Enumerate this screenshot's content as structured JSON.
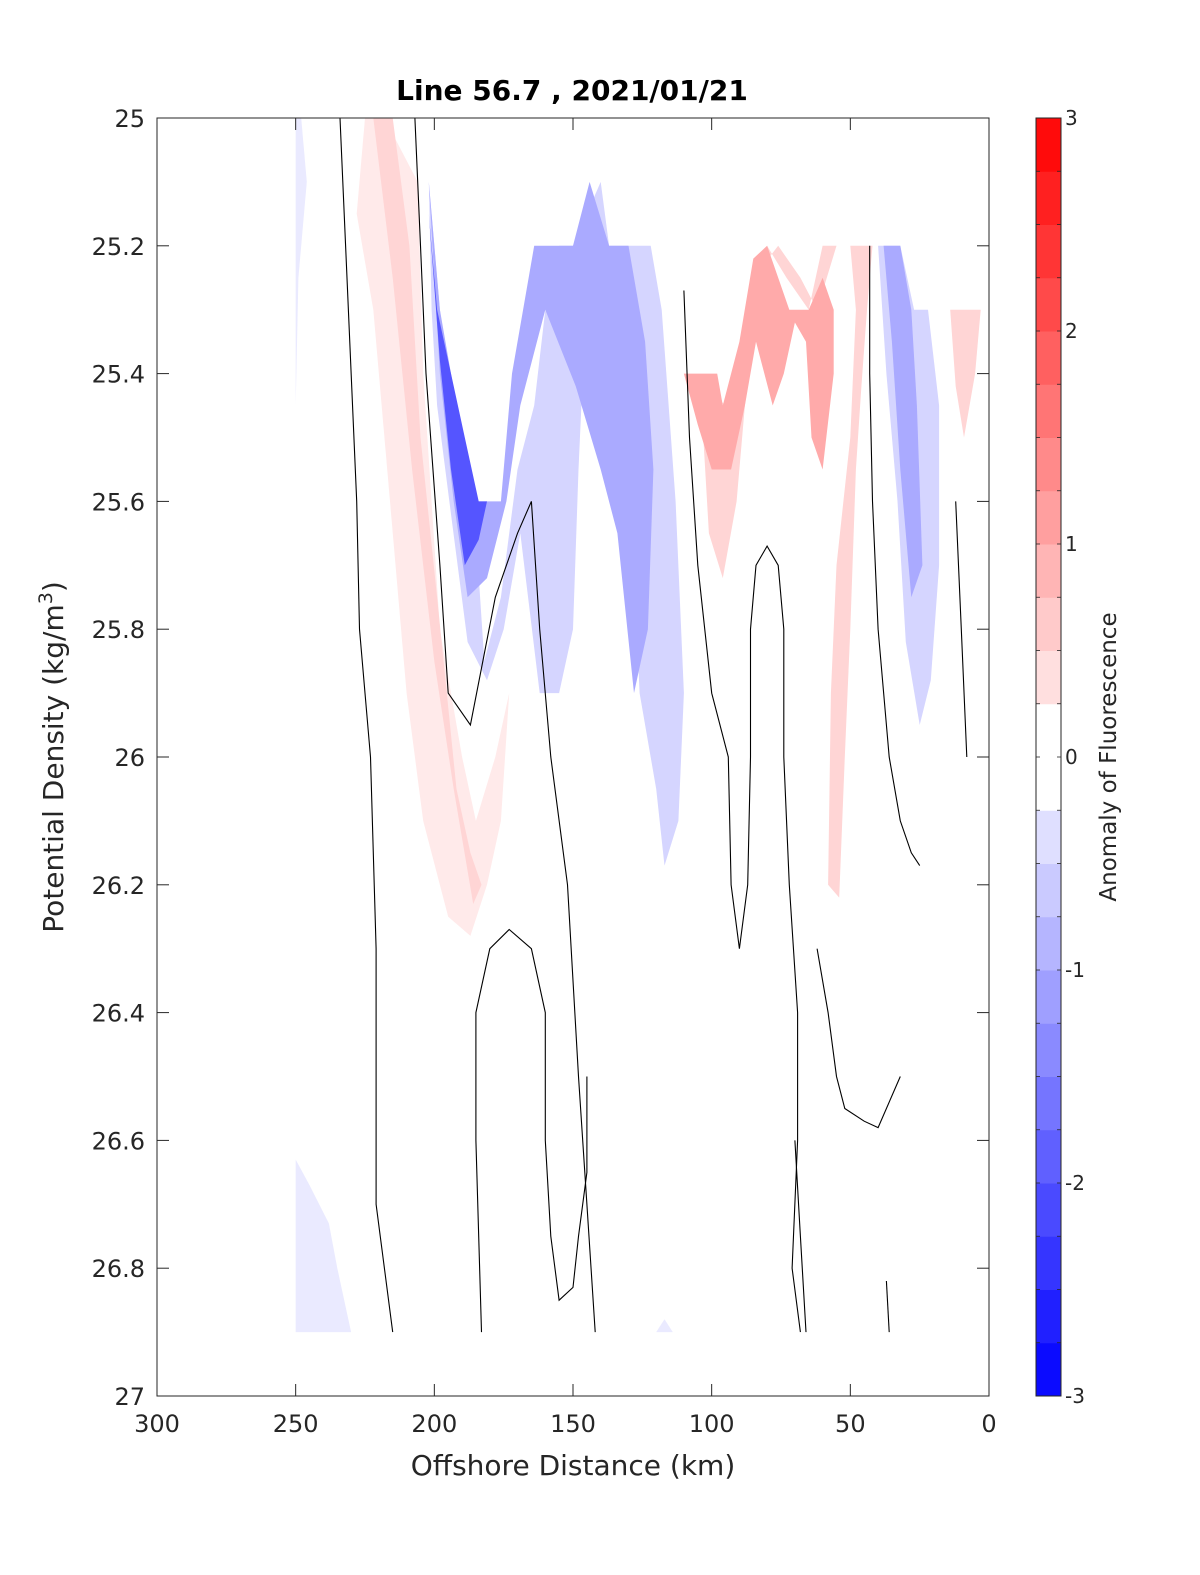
{
  "chart_data": {
    "type": "contour",
    "title": "Line 56.7 , 2021/01/21",
    "xlabel": "Offshore Distance (km)",
    "ylabel_main": "Potential Density (kg/m",
    "ylabel_sup": "3",
    "ylabel_close": ")",
    "xlim": [
      300,
      0
    ],
    "x_reversed": true,
    "ylim": [
      25,
      27
    ],
    "y_reversed": true,
    "xticks": [
      "300",
      "250",
      "200",
      "150",
      "100",
      "50",
      "0"
    ],
    "yticks": [
      "25",
      "25.2",
      "25.4",
      "25.6",
      "25.8",
      "26",
      "26.2",
      "26.4",
      "26.6",
      "26.8",
      "27"
    ],
    "grid": false,
    "colorbar": {
      "label": "Anomaly of Fluorescence",
      "limits": [
        -3,
        3
      ],
      "levels": 24,
      "ticks": [
        "3",
        "2",
        "1",
        "0",
        "-1",
        "-2",
        "-3"
      ],
      "colormap": "blue-white-red",
      "neg_color": "#0000ff",
      "pos_color": "#ff0000",
      "mid_color": "#ffffff"
    },
    "filled_regions": [
      {
        "anomaly": -0.25,
        "points": [
          [
            250,
            25.0
          ],
          [
            248,
            25.0
          ],
          [
            246,
            25.1
          ],
          [
            249,
            25.25
          ],
          [
            250,
            25.45
          ]
        ]
      },
      {
        "anomaly": 0.25,
        "points": [
          [
            225,
            25.0
          ],
          [
            218,
            25.0
          ],
          [
            206,
            25.1
          ],
          [
            204,
            25.4
          ],
          [
            198,
            25.8
          ],
          [
            190,
            26.0
          ],
          [
            185,
            26.1
          ],
          [
            178,
            26.0
          ],
          [
            173,
            25.9
          ],
          [
            176,
            26.1
          ],
          [
            181,
            26.2
          ],
          [
            187,
            26.28
          ],
          [
            195,
            26.25
          ],
          [
            204,
            26.1
          ],
          [
            210,
            25.9
          ],
          [
            216,
            25.6
          ],
          [
            222,
            25.3
          ],
          [
            228,
            25.15
          ]
        ]
      },
      {
        "anomaly": 0.5,
        "points": [
          [
            222,
            25.0
          ],
          [
            215,
            25.0
          ],
          [
            209,
            25.2
          ],
          [
            205,
            25.5
          ],
          [
            199,
            25.75
          ],
          [
            192,
            26.05
          ],
          [
            187,
            26.15
          ],
          [
            183,
            26.2
          ],
          [
            186,
            26.23
          ],
          [
            193,
            26.05
          ],
          [
            200,
            25.85
          ],
          [
            208,
            25.55
          ],
          [
            215,
            25.25
          ]
        ]
      },
      {
        "anomaly": -0.5,
        "points": [
          [
            202,
            25.1
          ],
          [
            198,
            25.3
          ],
          [
            192,
            25.5
          ],
          [
            185,
            25.65
          ],
          [
            182,
            25.85
          ],
          [
            176,
            25.75
          ],
          [
            170,
            25.55
          ],
          [
            164,
            25.45
          ],
          [
            160,
            25.3
          ],
          [
            155,
            25.2
          ],
          [
            150,
            25.2
          ],
          [
            140,
            25.1
          ],
          [
            137,
            25.2
          ],
          [
            122,
            25.2
          ],
          [
            118,
            25.3
          ],
          [
            113,
            25.6
          ],
          [
            110,
            25.9
          ],
          [
            112,
            26.1
          ],
          [
            117,
            26.17
          ],
          [
            120,
            26.05
          ],
          [
            126,
            25.9
          ],
          [
            128,
            25.7
          ],
          [
            131,
            25.5
          ],
          [
            135,
            25.35
          ],
          [
            137,
            25.28
          ],
          [
            145,
            25.26
          ],
          [
            148,
            25.55
          ],
          [
            150,
            25.8
          ],
          [
            155,
            25.9
          ],
          [
            162,
            25.9
          ],
          [
            169,
            25.65
          ],
          [
            175,
            25.8
          ],
          [
            181,
            25.88
          ],
          [
            188,
            25.82
          ],
          [
            194,
            25.62
          ],
          [
            199,
            25.45
          ],
          [
            201,
            25.3
          ]
        ]
      },
      {
        "anomaly": -1.0,
        "points": [
          [
            202,
            25.1
          ],
          [
            198,
            25.3
          ],
          [
            192,
            25.45
          ],
          [
            186,
            25.6
          ],
          [
            181,
            25.6
          ],
          [
            176,
            25.6
          ],
          [
            172,
            25.4
          ],
          [
            164,
            25.2
          ],
          [
            150,
            25.2
          ],
          [
            144,
            25.1
          ],
          [
            137,
            25.2
          ],
          [
            130,
            25.2
          ],
          [
            124,
            25.35
          ],
          [
            121,
            25.55
          ],
          [
            123,
            25.8
          ],
          [
            128,
            25.9
          ],
          [
            134,
            25.65
          ],
          [
            140,
            25.55
          ],
          [
            149,
            25.42
          ],
          [
            160,
            25.3
          ],
          [
            169,
            25.45
          ],
          [
            174,
            25.6
          ],
          [
            181,
            25.72
          ],
          [
            188,
            25.75
          ],
          [
            193,
            25.6
          ],
          [
            198,
            25.4
          ]
        ]
      },
      {
        "anomaly": -2.0,
        "points": [
          [
            202,
            25.15
          ],
          [
            199,
            25.3
          ],
          [
            194,
            25.4
          ],
          [
            189,
            25.5
          ],
          [
            184,
            25.6
          ],
          [
            181,
            25.6
          ],
          [
            184,
            25.66
          ],
          [
            189,
            25.7
          ],
          [
            194,
            25.55
          ],
          [
            198,
            25.38
          ]
        ]
      },
      {
        "anomaly": -0.5,
        "points": [
          [
            40,
            25.2
          ],
          [
            32,
            25.2
          ],
          [
            27,
            25.3
          ],
          [
            22,
            25.3
          ],
          [
            18,
            25.45
          ],
          [
            18,
            25.7
          ],
          [
            21,
            25.88
          ],
          [
            25,
            25.95
          ],
          [
            30,
            25.82
          ],
          [
            33,
            25.6
          ],
          [
            37,
            25.4
          ]
        ]
      },
      {
        "anomaly": -1.0,
        "points": [
          [
            38,
            25.2
          ],
          [
            32,
            25.2
          ],
          [
            28,
            25.3
          ],
          [
            26,
            25.45
          ],
          [
            24,
            25.7
          ],
          [
            28,
            25.75
          ],
          [
            32,
            25.55
          ],
          [
            35,
            25.35
          ]
        ]
      },
      {
        "anomaly": 0.5,
        "points": [
          [
            110,
            25.4
          ],
          [
            103,
            25.5
          ],
          [
            101,
            25.65
          ],
          [
            96,
            25.72
          ],
          [
            91,
            25.6
          ],
          [
            88,
            25.45
          ],
          [
            83,
            25.3
          ],
          [
            80,
            25.2
          ],
          [
            73,
            25.25
          ],
          [
            65,
            25.3
          ],
          [
            60,
            25.2
          ],
          [
            50,
            25.2
          ],
          [
            48,
            25.3
          ],
          [
            50,
            25.5
          ],
          [
            55,
            25.7
          ],
          [
            57,
            25.9
          ],
          [
            58,
            26.2
          ],
          [
            54,
            26.22
          ],
          [
            52,
            26.0
          ],
          [
            50,
            25.8
          ],
          [
            48,
            25.55
          ],
          [
            46,
            25.42
          ],
          [
            44,
            25.3
          ],
          [
            42,
            25.2
          ],
          [
            55,
            25.2
          ],
          [
            62,
            25.3
          ],
          [
            68,
            25.25
          ],
          [
            76,
            25.2
          ],
          [
            85,
            25.25
          ],
          [
            90,
            25.38
          ],
          [
            95,
            25.45
          ],
          [
            102,
            25.42
          ]
        ]
      },
      {
        "anomaly": 1.0,
        "points": [
          [
            110,
            25.4
          ],
          [
            98,
            25.4
          ],
          [
            96,
            25.45
          ],
          [
            90,
            25.35
          ],
          [
            85,
            25.22
          ],
          [
            80,
            25.2
          ],
          [
            76,
            25.25
          ],
          [
            72,
            25.3
          ],
          [
            65,
            25.3
          ],
          [
            60,
            25.25
          ],
          [
            56,
            25.3
          ],
          [
            56,
            25.4
          ],
          [
            60,
            25.55
          ],
          [
            64,
            25.5
          ],
          [
            66,
            25.35
          ],
          [
            70,
            25.32
          ],
          [
            74,
            25.4
          ],
          [
            78,
            25.45
          ],
          [
            84,
            25.35
          ],
          [
            88,
            25.45
          ],
          [
            93,
            25.55
          ],
          [
            100,
            25.55
          ],
          [
            105,
            25.48
          ]
        ]
      },
      {
        "anomaly": 0.5,
        "points": [
          [
            14,
            25.3
          ],
          [
            3,
            25.3
          ],
          [
            5,
            25.4
          ],
          [
            9,
            25.5
          ],
          [
            12,
            25.42
          ]
        ]
      },
      {
        "anomaly": -0.25,
        "points": [
          [
            250,
            26.63
          ],
          [
            245,
            26.67
          ],
          [
            238,
            26.73
          ],
          [
            235,
            26.8
          ],
          [
            230,
            26.9
          ],
          [
            250,
            26.9
          ]
        ]
      },
      {
        "anomaly": -0.25,
        "points": [
          [
            120,
            26.9
          ],
          [
            114,
            26.9
          ],
          [
            117,
            26.88
          ]
        ]
      }
    ],
    "zero_contours": [
      {
        "points": [
          [
            234,
            25.0
          ],
          [
            232,
            25.2
          ],
          [
            228,
            25.6
          ],
          [
            227,
            25.8
          ],
          [
            223,
            26.0
          ],
          [
            221,
            26.3
          ],
          [
            221,
            26.7
          ],
          [
            215,
            26.9
          ]
        ]
      },
      {
        "points": [
          [
            207,
            25.0
          ],
          [
            205,
            25.2
          ],
          [
            203,
            25.4
          ],
          [
            198,
            25.7
          ],
          [
            195,
            25.9
          ],
          [
            187,
            25.95
          ],
          [
            178,
            25.75
          ],
          [
            170,
            25.65
          ],
          [
            165,
            25.6
          ],
          [
            162,
            25.8
          ],
          [
            158,
            26.0
          ],
          [
            152,
            26.2
          ],
          [
            148,
            26.5
          ],
          [
            145,
            26.7
          ],
          [
            142,
            26.9
          ]
        ]
      },
      {
        "points": [
          [
            110,
            25.27
          ],
          [
            108,
            25.5
          ],
          [
            105,
            25.7
          ],
          [
            100,
            25.9
          ],
          [
            94,
            26.0
          ],
          [
            93,
            26.2
          ],
          [
            90,
            26.3
          ],
          [
            87,
            26.2
          ],
          [
            86,
            26.0
          ],
          [
            86,
            25.8
          ],
          [
            84,
            25.7
          ],
          [
            80,
            25.67
          ],
          [
            76,
            25.7
          ],
          [
            74,
            25.8
          ],
          [
            74,
            26.0
          ],
          [
            72,
            26.2
          ],
          [
            69,
            26.4
          ],
          [
            69,
            26.6
          ],
          [
            71,
            26.8
          ],
          [
            68,
            26.9
          ]
        ]
      },
      {
        "points": [
          [
            43,
            25.2
          ],
          [
            43,
            25.4
          ],
          [
            42,
            25.6
          ],
          [
            40,
            25.8
          ],
          [
            36,
            26.0
          ],
          [
            32,
            26.1
          ],
          [
            28,
            26.15
          ],
          [
            25,
            26.17
          ]
        ]
      },
      {
        "points": [
          [
            12,
            25.6
          ],
          [
            10,
            25.8
          ],
          [
            8,
            26.0
          ]
        ]
      },
      {
        "points": [
          [
            183,
            26.9
          ],
          [
            185,
            26.6
          ],
          [
            185,
            26.4
          ],
          [
            180,
            26.3
          ],
          [
            173,
            26.27
          ],
          [
            165,
            26.3
          ],
          [
            160,
            26.4
          ],
          [
            160,
            26.6
          ],
          [
            158,
            26.75
          ],
          [
            155,
            26.85
          ],
          [
            150,
            26.83
          ],
          [
            148,
            26.75
          ],
          [
            145,
            26.65
          ],
          [
            145,
            26.5
          ]
        ]
      },
      {
        "points": [
          [
            62,
            26.3
          ],
          [
            58,
            26.4
          ],
          [
            55,
            26.5
          ],
          [
            52,
            26.55
          ],
          [
            45,
            26.57
          ],
          [
            40,
            26.58
          ],
          [
            32,
            26.5
          ]
        ]
      },
      {
        "points": [
          [
            70,
            26.6
          ],
          [
            68,
            26.75
          ],
          [
            66,
            26.9
          ]
        ]
      },
      {
        "points": [
          [
            37,
            26.82
          ],
          [
            36,
            26.9
          ]
        ]
      }
    ]
  }
}
